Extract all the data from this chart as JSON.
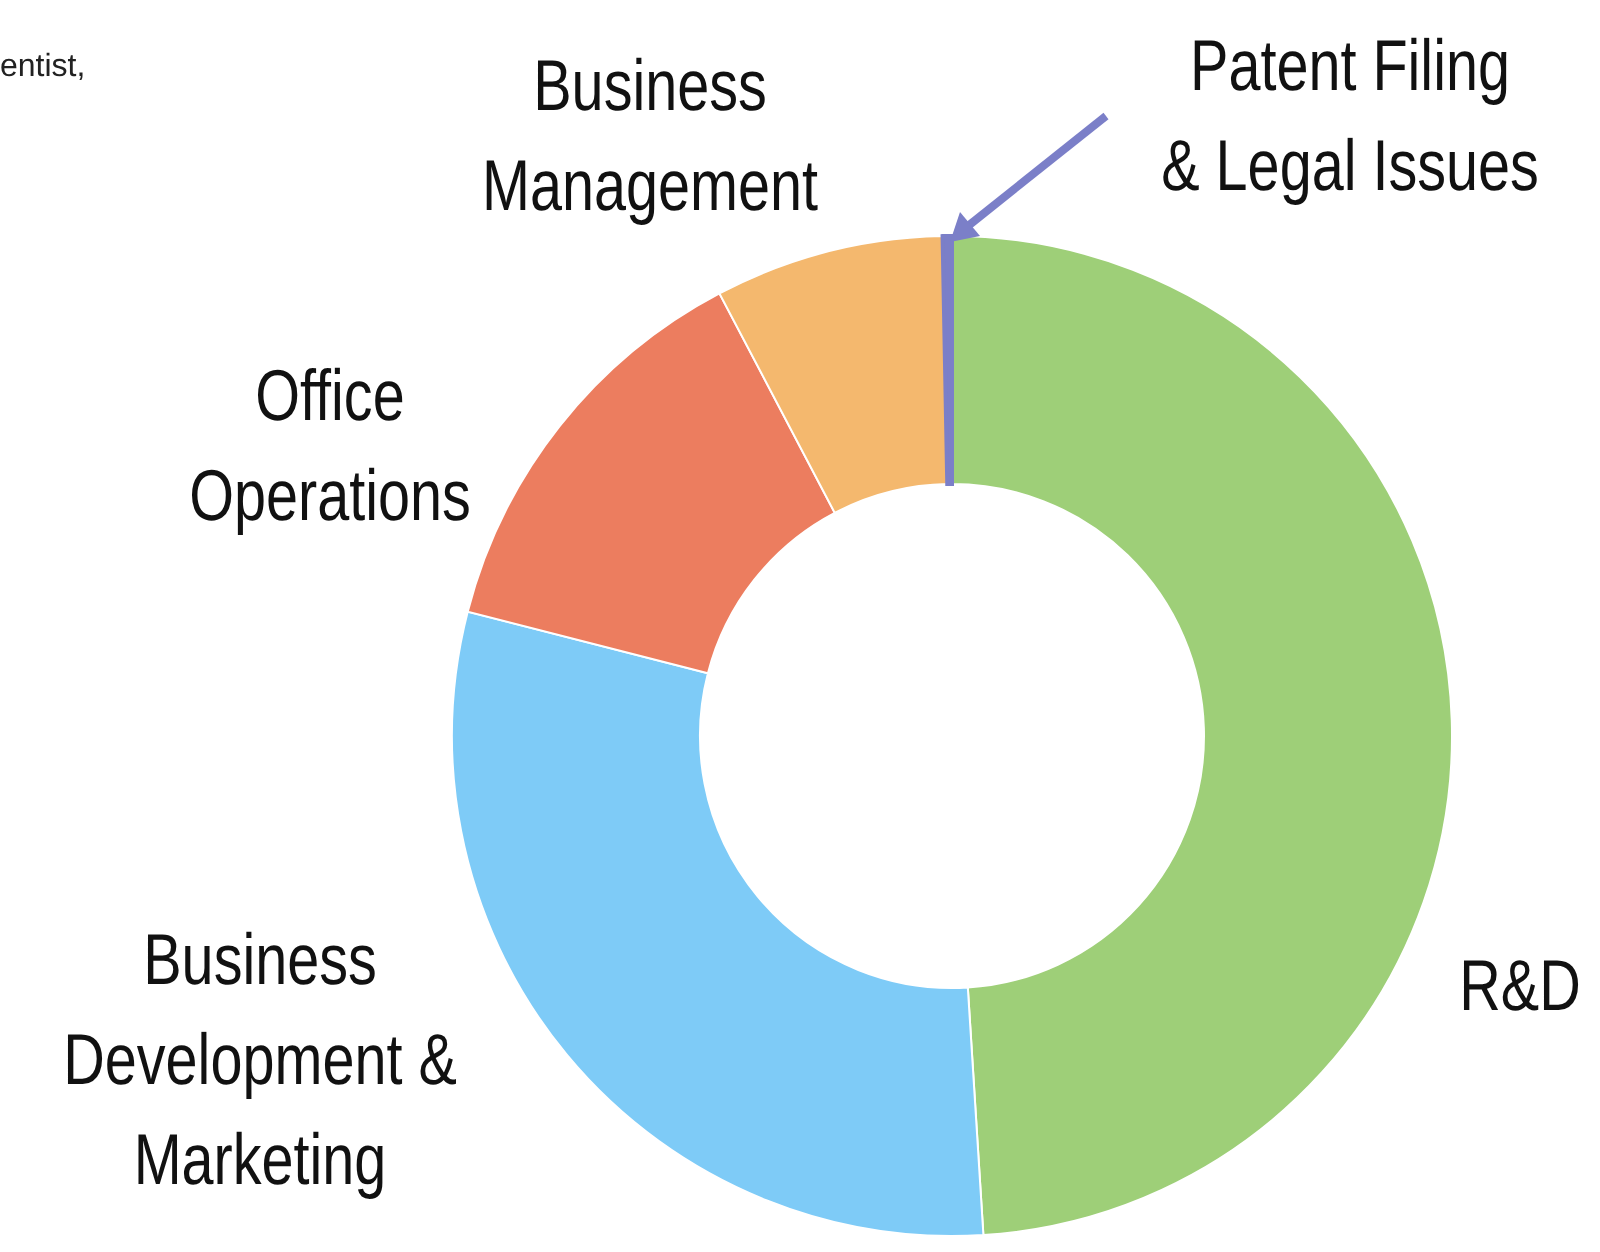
{
  "chart_data": {
    "type": "donut",
    "categories": [
      "R&D",
      "Business Development & Marketing",
      "Office Operations",
      "Business Management",
      "Patent Filing & Legal Issues"
    ],
    "values": [
      49,
      30,
      13.3,
      7.4,
      0.3
    ],
    "colors": [
      "#9ecf78",
      "#7ecbf7",
      "#ec7d5f",
      "#f4b86e",
      "#7b7fc8"
    ],
    "annotations": [
      "entist,"
    ]
  }
}
